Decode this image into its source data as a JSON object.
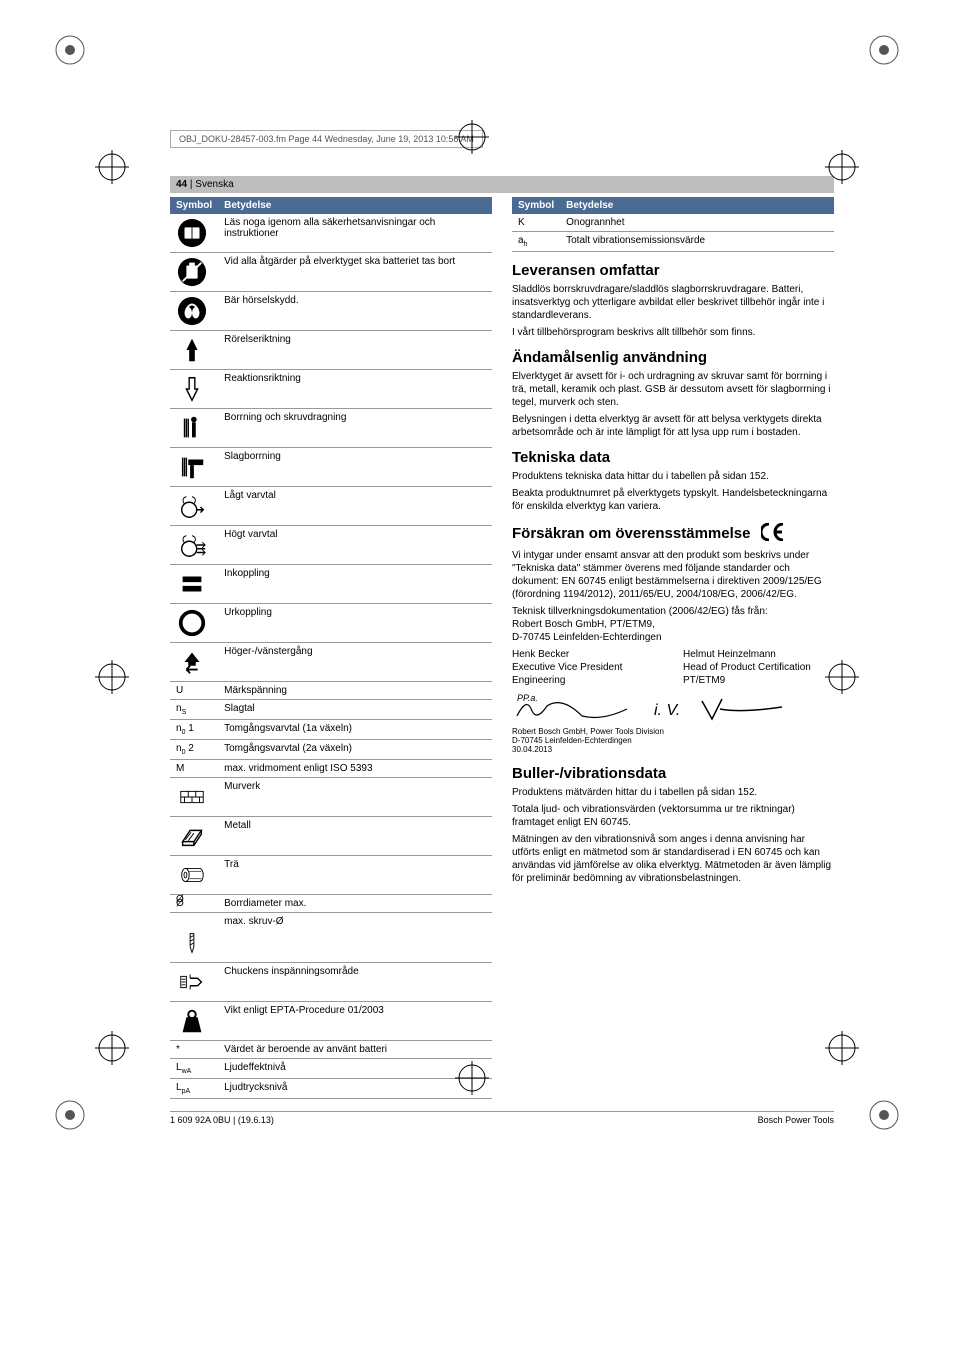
{
  "docHeader": "OBJ_DOKU-28457-003.fm  Page 44  Wednesday, June 19, 2013  10:56 AM",
  "pageBar": {
    "num": "44",
    "lang": "Svenska"
  },
  "colors": {
    "headerBg": "#4a6a92",
    "headerFg": "#ffffff",
    "pageBarBg": "#bdbdbd",
    "rule": "#999999"
  },
  "table1": {
    "headers": [
      "Symbol",
      "Betydelse"
    ],
    "rows": [
      {
        "icon": "read-manual",
        "text": "Läs noga igenom alla säkerhetsanvisningar och instruktioner"
      },
      {
        "icon": "remove-battery",
        "text": "Vid alla åtgärder på elverktyget ska batteriet tas bort"
      },
      {
        "icon": "ear-protection",
        "text": "Bär hörselskydd."
      },
      {
        "icon": "arrow-up",
        "text": "Rörelseriktning"
      },
      {
        "icon": "arrow-down",
        "text": "Reaktionsriktning"
      },
      {
        "icon": "drill-mode",
        "text": "Borrning och skruvdragning"
      },
      {
        "icon": "hammer-mode",
        "text": "Slagborrning"
      },
      {
        "icon": "low-speed",
        "text": "Lågt varvtal"
      },
      {
        "icon": "high-speed",
        "text": "Högt varvtal"
      },
      {
        "icon": "switch-on",
        "text": "Inkoppling"
      },
      {
        "icon": "switch-off",
        "text": "Urkoppling"
      },
      {
        "icon": "direction",
        "text": "Höger-/vänstergång"
      },
      {
        "sym": "U",
        "text": "Märkspänning"
      },
      {
        "sym": "n",
        "sub": "S",
        "text": "Slagtal"
      },
      {
        "sym": "n",
        "sub": "0",
        "suffix": " 1",
        "text": "Tomgångsvarvtal (1a växeln)"
      },
      {
        "sym": "n",
        "sub": "0",
        "suffix": " 2",
        "text": "Tomgångsvarvtal (2a växeln)"
      },
      {
        "sym": "M",
        "text": "max. vridmoment enligt ISO 5393"
      },
      {
        "icon": "brick",
        "text": "Murverk"
      },
      {
        "icon": "metal",
        "text": "Metall"
      },
      {
        "icon": "wood",
        "text": "Trä"
      },
      {
        "sym": "Ø",
        "text": "Borrdiameter max."
      },
      {
        "icon": "screw-dia",
        "sym": "Ø",
        "text": "max. skruv-Ø"
      },
      {
        "icon": "chuck",
        "text": "Chuckens inspänningsområde"
      },
      {
        "icon": "weight",
        "text": "Vikt enligt EPTA-Procedure 01/2003"
      },
      {
        "sym": "*",
        "text": "Värdet är beroende av använt batteri"
      },
      {
        "sym": "L",
        "sub": "wA",
        "text": "Ljudeffektnivå"
      },
      {
        "sym": "L",
        "sub": "pA",
        "text": "Ljudtrycksnivå"
      }
    ]
  },
  "table2": {
    "headers": [
      "Symbol",
      "Betydelse"
    ],
    "rows": [
      {
        "sym": "K",
        "text": "Onogrannhet"
      },
      {
        "sym": "a",
        "sub": "h",
        "text": "Totalt vibrationsemissionsvärde"
      }
    ]
  },
  "sections": {
    "leveransen": {
      "title": "Leveransen omfattar",
      "paras": [
        "Sladdlös borrskruvdragare/sladdlös slagborrskruvdragare. Batteri, insatsverktyg och ytterligare avbildat eller beskrivet tillbehör ingår inte i standardleverans.",
        "I vårt tillbehörsprogram beskrivs allt tillbehör som finns."
      ]
    },
    "andamal": {
      "title": "Ändamålsenlig användning",
      "paras": [
        "Elverktyget är avsett för i- och urdragning av skruvar samt för borrning i trä, metall, keramik och plast. GSB är dessutom avsett för slagborrning i tegel, murverk och sten.",
        "Belysningen i detta elverktyg är avsett för att belysa verktygets direkta arbetsområde och är inte lämpligt för att lysa upp rum i bostaden."
      ]
    },
    "tekniska": {
      "title": "Tekniska data",
      "paras": [
        "Produktens tekniska data hittar du i tabellen på sidan 152.",
        "Beakta produktnumret på elverktygets typskylt. Handelsbeteckningarna för enskilda elverktyg kan variera."
      ]
    },
    "forsakran": {
      "title": "Försäkran om överensstämmelse",
      "paras": [
        "Vi intygar under ensamt ansvar att den produkt som beskrivs under \"Tekniska data\" stämmer överens med följande standarder och dokument: EN 60745 enligt bestämmelserna i direktiven 2009/125/EG (förordning 1194/2012), 2011/65/EU, 2004/108/EG, 2006/42/EG.",
        "Teknisk tillverkningsdokumentation (2006/42/EG) fås från:\nRobert Bosch GmbH, PT/ETM9,\nD-70745 Leinfelden-Echterdingen"
      ],
      "sign": {
        "left": {
          "name": "Henk Becker",
          "title1": "Executive Vice President",
          "title2": "Engineering"
        },
        "right": {
          "name": "Helmut Heinzelmann",
          "title1": "Head of Product Certification",
          "title2": "PT/ETM9"
        }
      },
      "addr": "Robert Bosch GmbH, Power Tools Division\nD-70745 Leinfelden-Echterdingen\n30.04.2013"
    },
    "buller": {
      "title": "Buller-/vibrationsdata",
      "paras": [
        "Produktens mätvärden hittar du i tabellen på sidan 152.",
        "Totala ljud- och vibrationsvärden (vektorsumma ur tre riktningar) framtaget enligt EN 60745.",
        "Mätningen av den vibrationsnivå som anges i denna anvisning har utförts enligt en mätmetod som är standardiserad i EN 60745 och kan användas vid jämförelse av olika elverktyg. Mätmetoden är även lämplig för preliminär bedömning av vibrationsbelastningen."
      ]
    }
  },
  "footer": {
    "left": "1 609 92A 0BU | (19.6.13)",
    "right": "Bosch Power Tools"
  }
}
